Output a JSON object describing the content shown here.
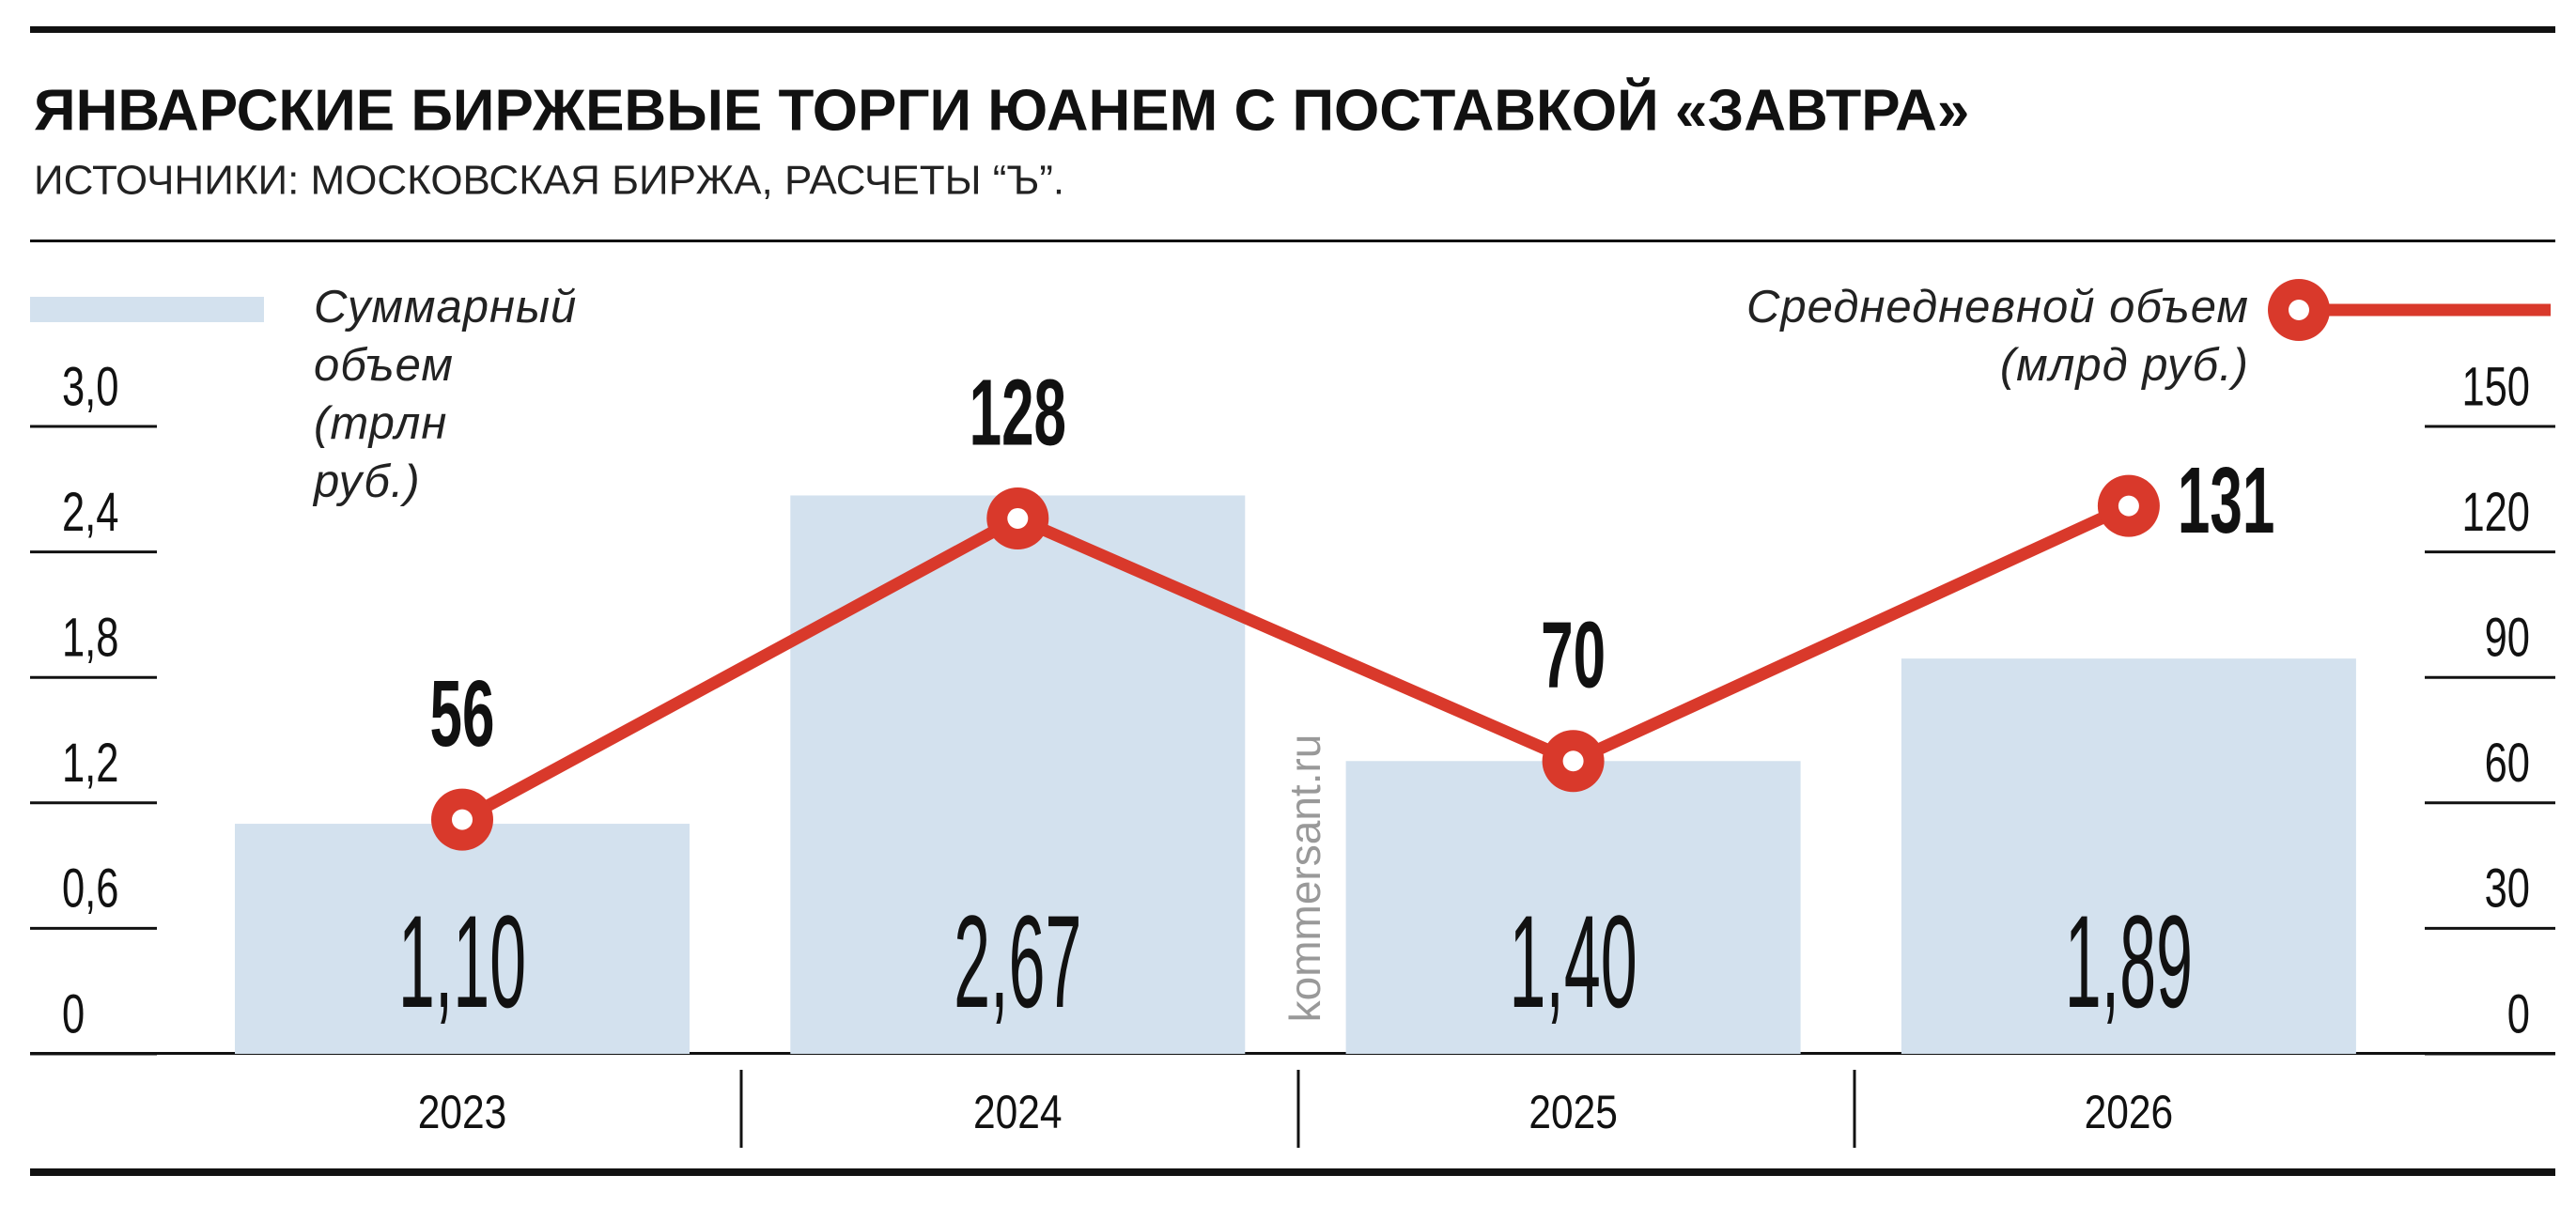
{
  "chart_data": {
    "type": "bar",
    "title": "ЯНВАРСКИЕ БИРЖЕВЫЕ ТОРГИ ЮАНЕМ С ПОСТАВКОЙ «ЗАВТРА»",
    "subtitle": "ИСТОЧНИКИ: МОСКОВСКАЯ БИРЖА, РАСЧЕТЫ “Ъ”.",
    "watermark": "kommersant.ru",
    "categories": [
      "2023",
      "2024",
      "2025",
      "2026"
    ],
    "series": [
      {
        "name": "Суммарный объем (трлн руб.)",
        "type": "bar",
        "color": "#d3e1ee",
        "values": [
          1.1,
          2.67,
          1.4,
          1.89
        ],
        "value_labels": [
          "1,10",
          "2,67",
          "1,40",
          "1,89"
        ]
      },
      {
        "name": "Среднедневной объем (млрд руб.)",
        "type": "line",
        "axis": "y2",
        "color": "#d9392b",
        "values": [
          56,
          128,
          70,
          131
        ]
      }
    ],
    "ylim": [
      0,
      3.0
    ],
    "yticks": [
      0,
      {
        "value": 0.6,
        "label": "0,6"
      },
      {
        "value": 1.2,
        "label": "1,2"
      },
      {
        "value": 1.8,
        "label": "1,8"
      },
      {
        "value": 2.4,
        "label": "2,4"
      },
      {
        "value": 3.0,
        "label": "3,0"
      }
    ],
    "y2lim": [
      0,
      150
    ],
    "y2ticks": [
      0,
      30,
      60,
      90,
      120,
      150
    ]
  }
}
